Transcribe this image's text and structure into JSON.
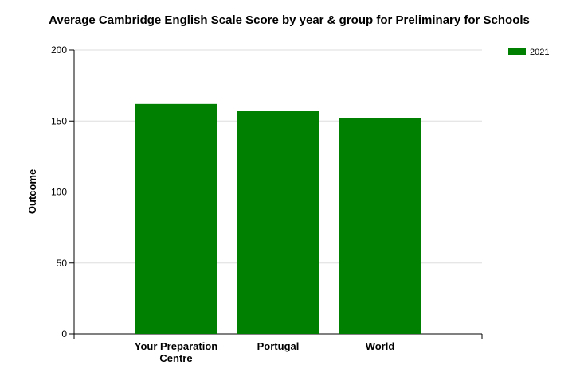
{
  "chart_data": {
    "type": "bar",
    "title": "Average Cambridge English Scale Score by year & group for Preliminary for Schools",
    "y_label": "Outcome",
    "categories": [
      "Your Preparation Centre",
      "Portugal",
      "World"
    ],
    "series": [
      {
        "name": "2021",
        "color": "#008000",
        "values": [
          162,
          157,
          152
        ]
      }
    ],
    "ylim": [
      0,
      200
    ],
    "yticks": [
      0,
      50,
      100,
      150,
      200
    ],
    "grid": true,
    "legend": "top-right"
  }
}
